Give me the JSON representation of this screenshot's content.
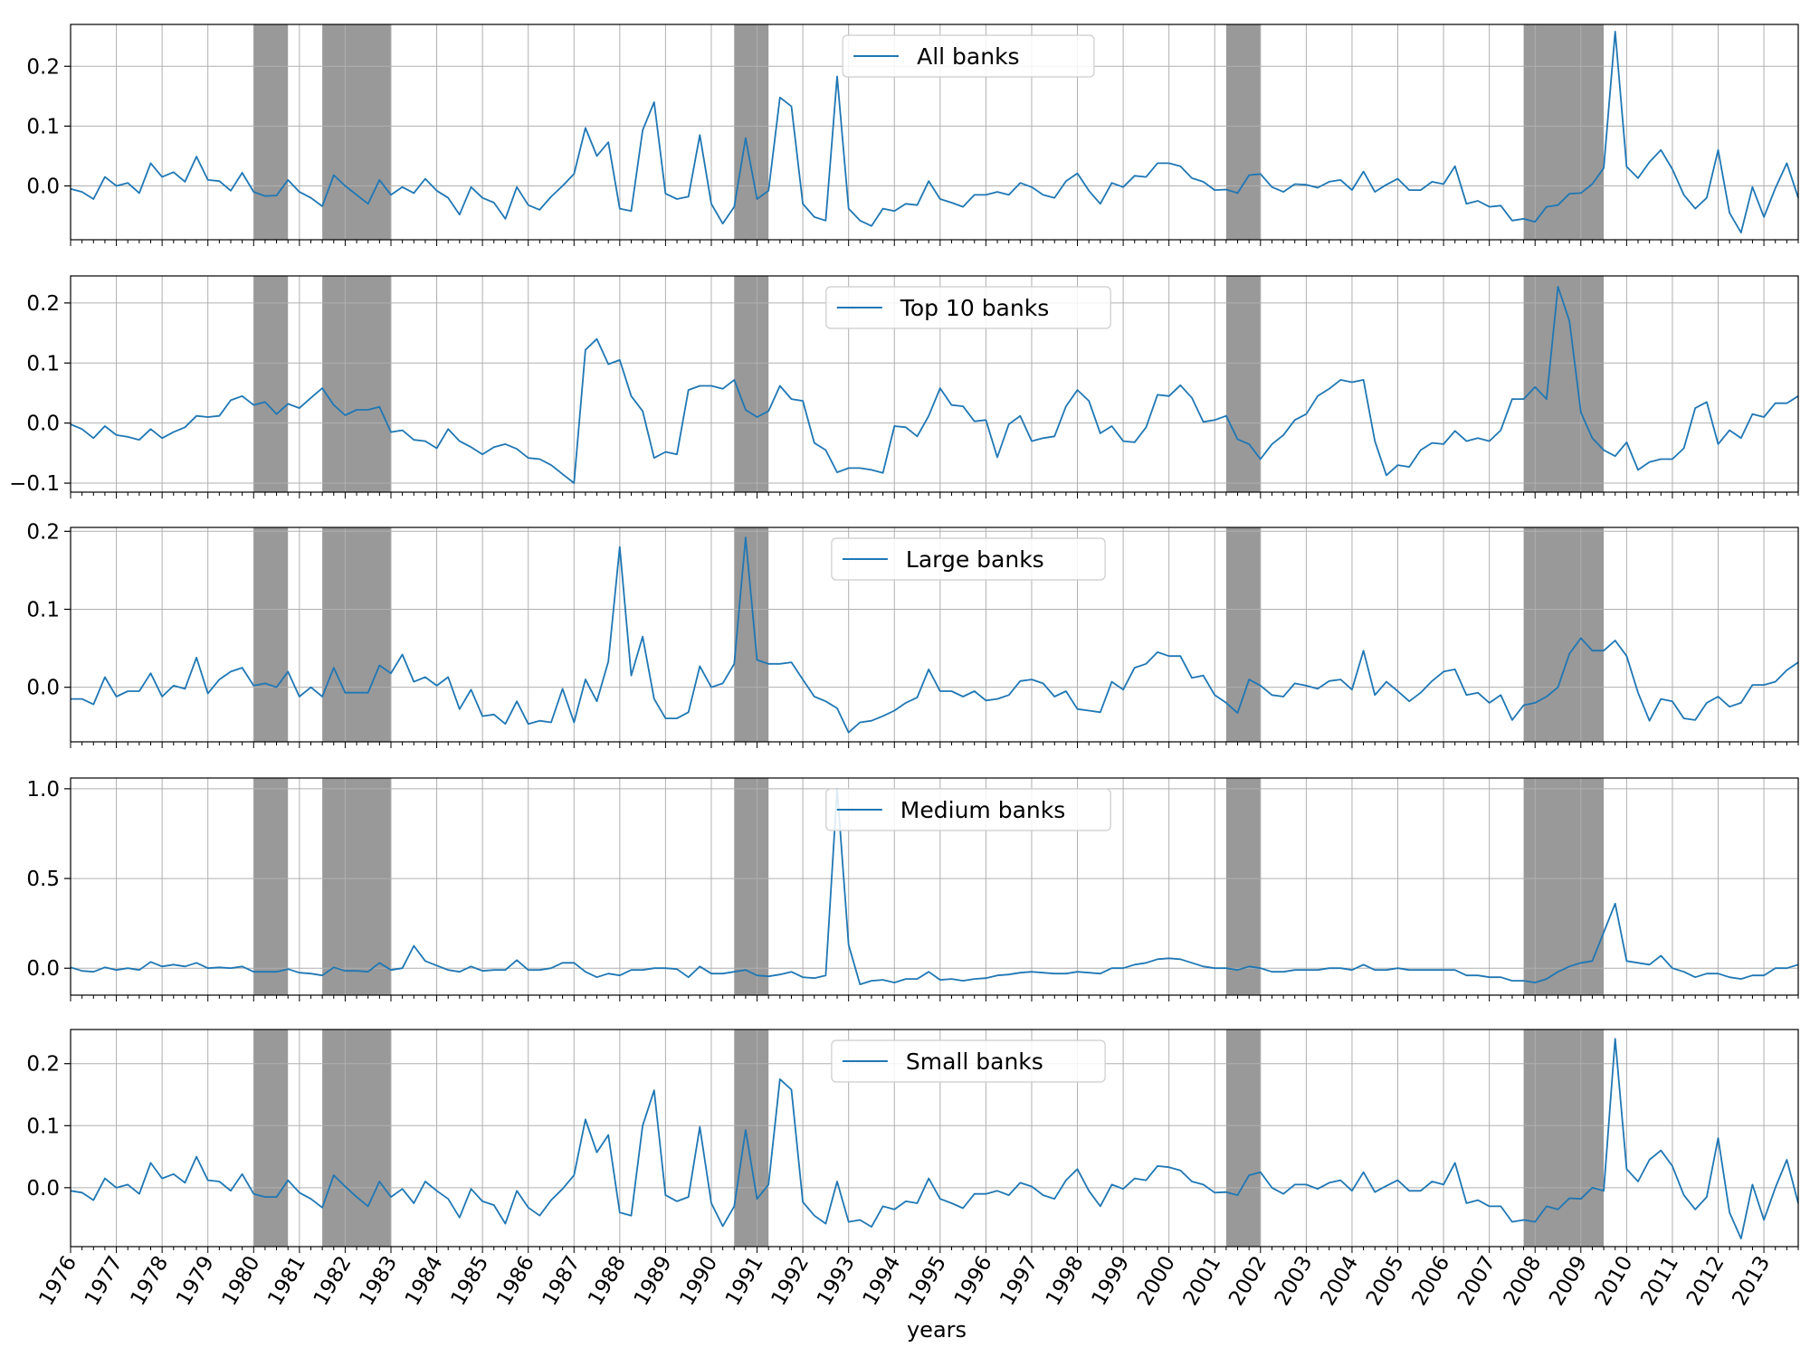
{
  "chart_data": {
    "type": "line",
    "xlabel": "years",
    "x_ticks": [
      "1976",
      "1977",
      "1978",
      "1979",
      "1980",
      "1981",
      "1982",
      "1983",
      "1984",
      "1985",
      "1986",
      "1987",
      "1988",
      "1989",
      "1990",
      "1991",
      "1992",
      "1993",
      "1994",
      "1995",
      "1996",
      "1997",
      "1998",
      "1999",
      "2000",
      "2001",
      "2002",
      "2003",
      "2004",
      "2005",
      "2006",
      "2007",
      "2008",
      "2009",
      "2010",
      "2011",
      "2012",
      "2013"
    ],
    "xlim": [
      "1976Q1",
      "2013Q4"
    ],
    "grid": true,
    "legend_placement": "upper center",
    "line_color": "#1f77b4",
    "recession_shading_color": "#999999",
    "recession_periods": [
      [
        "1980Q1",
        "1980Q3"
      ],
      [
        "1981Q3",
        "1982Q4"
      ],
      [
        "1990Q3",
        "1991Q1"
      ],
      [
        "2001Q2",
        "2001Q4"
      ],
      [
        "2007Q4",
        "2009Q2"
      ]
    ],
    "panels": [
      {
        "series_name": "All banks",
        "ylim": [
          -0.09,
          0.27
        ],
        "y_ticks": [
          0.0,
          0.1,
          0.2
        ],
        "y_tick_labels": [
          "0.0",
          "0.1",
          "0.2"
        ],
        "values": [
          -0.005,
          -0.01,
          -0.022,
          0.015,
          0.0,
          0.005,
          -0.012,
          0.038,
          0.015,
          0.023,
          0.007,
          0.049,
          0.01,
          0.008,
          -0.008,
          0.022,
          -0.01,
          -0.017,
          -0.016,
          0.01,
          -0.01,
          -0.02,
          -0.034,
          0.018,
          0.0,
          -0.015,
          -0.03,
          0.01,
          -0.015,
          -0.002,
          -0.012,
          0.012,
          -0.008,
          -0.02,
          -0.048,
          -0.002,
          -0.02,
          -0.028,
          -0.055,
          -0.002,
          -0.032,
          -0.04,
          -0.018,
          0.0,
          0.02,
          0.097,
          0.05,
          0.073,
          -0.038,
          -0.042,
          0.093,
          0.14,
          -0.013,
          -0.022,
          -0.018,
          0.085,
          -0.03,
          -0.063,
          -0.035,
          0.08,
          -0.022,
          -0.008,
          0.148,
          0.133,
          -0.03,
          -0.052,
          -0.058,
          0.183,
          -0.038,
          -0.058,
          -0.067,
          -0.038,
          -0.042,
          -0.03,
          -0.032,
          0.008,
          -0.022,
          -0.028,
          -0.035,
          -0.015,
          -0.015,
          -0.01,
          -0.015,
          0.005,
          -0.002,
          -0.015,
          -0.02,
          0.008,
          0.021,
          -0.008,
          -0.03,
          0.005,
          -0.002,
          0.017,
          0.015,
          0.038,
          0.038,
          0.033,
          0.013,
          0.007,
          -0.007,
          -0.006,
          -0.012,
          0.018,
          0.02,
          -0.002,
          -0.01,
          0.003,
          0.002,
          -0.003,
          0.007,
          0.01,
          -0.007,
          0.024,
          -0.01,
          0.002,
          0.012,
          -0.007,
          -0.007,
          0.007,
          0.003,
          0.033,
          -0.03,
          -0.025,
          -0.035,
          -0.033,
          -0.058,
          -0.055,
          -0.06,
          -0.035,
          -0.032,
          -0.013,
          -0.012,
          0.003,
          0.03,
          0.258,
          0.032,
          0.013,
          0.04,
          0.06,
          0.028,
          -0.015,
          -0.038,
          -0.02,
          0.06,
          -0.045,
          -0.078,
          -0.002,
          -0.052,
          -0.004,
          0.038,
          -0.02
        ]
      },
      {
        "series_name": "Top 10 banks",
        "ylim": [
          -0.115,
          0.245
        ],
        "y_ticks": [
          -0.1,
          0.0,
          0.1,
          0.2
        ],
        "y_tick_labels": [
          "−0.1",
          "0.0",
          "0.1",
          "0.2"
        ],
        "values": [
          -0.002,
          -0.01,
          -0.025,
          -0.005,
          -0.02,
          -0.023,
          -0.028,
          -0.01,
          -0.025,
          -0.015,
          -0.007,
          0.012,
          0.01,
          0.012,
          0.038,
          0.045,
          0.03,
          0.035,
          0.015,
          0.032,
          0.025,
          0.042,
          0.058,
          0.03,
          0.013,
          0.022,
          0.022,
          0.027,
          -0.015,
          -0.012,
          -0.028,
          -0.03,
          -0.042,
          -0.01,
          -0.03,
          -0.04,
          -0.052,
          -0.04,
          -0.035,
          -0.043,
          -0.058,
          -0.06,
          -0.07,
          -0.085,
          -0.1,
          0.122,
          0.14,
          0.098,
          0.105,
          0.045,
          0.02,
          -0.058,
          -0.048,
          -0.052,
          0.055,
          0.062,
          0.062,
          0.057,
          0.072,
          0.022,
          0.01,
          0.02,
          0.062,
          0.04,
          0.037,
          -0.033,
          -0.045,
          -0.082,
          -0.075,
          -0.075,
          -0.078,
          -0.083,
          -0.005,
          -0.007,
          -0.022,
          0.012,
          0.058,
          0.03,
          0.028,
          0.003,
          0.005,
          -0.057,
          -0.002,
          0.012,
          -0.03,
          -0.025,
          -0.022,
          0.028,
          0.055,
          0.037,
          -0.017,
          -0.005,
          -0.03,
          -0.032,
          -0.007,
          0.047,
          0.045,
          0.063,
          0.042,
          0.002,
          0.005,
          0.012,
          -0.027,
          -0.035,
          -0.06,
          -0.035,
          -0.02,
          0.005,
          0.015,
          0.045,
          0.057,
          0.072,
          0.068,
          0.072,
          -0.03,
          -0.087,
          -0.07,
          -0.073,
          -0.045,
          -0.033,
          -0.035,
          -0.013,
          -0.03,
          -0.025,
          -0.03,
          -0.012,
          0.04,
          0.04,
          0.06,
          0.04,
          0.227,
          0.17,
          0.018,
          -0.025,
          -0.045,
          -0.055,
          -0.032,
          -0.078,
          -0.065,
          -0.06,
          -0.06,
          -0.042,
          0.025,
          0.035,
          -0.035,
          -0.012,
          -0.025,
          0.015,
          0.01,
          0.033,
          0.033,
          0.045
        ]
      },
      {
        "series_name": "Large banks",
        "ylim": [
          -0.07,
          0.205
        ],
        "y_ticks": [
          0.0,
          0.1,
          0.2
        ],
        "y_tick_labels": [
          "0.0",
          "0.1",
          "0.2"
        ],
        "values": [
          -0.015,
          -0.015,
          -0.022,
          0.013,
          -0.012,
          -0.005,
          -0.005,
          0.018,
          -0.012,
          0.002,
          -0.002,
          0.038,
          -0.008,
          0.01,
          0.02,
          0.025,
          0.002,
          0.005,
          0.0,
          0.02,
          -0.012,
          0.0,
          -0.012,
          0.025,
          -0.007,
          -0.007,
          -0.007,
          0.028,
          0.018,
          0.042,
          0.007,
          0.013,
          0.002,
          0.013,
          -0.028,
          -0.003,
          -0.037,
          -0.035,
          -0.047,
          -0.018,
          -0.047,
          -0.043,
          -0.045,
          -0.002,
          -0.045,
          0.01,
          -0.018,
          0.033,
          0.18,
          0.015,
          0.065,
          -0.015,
          -0.04,
          -0.04,
          -0.032,
          0.027,
          0.0,
          0.005,
          0.03,
          0.192,
          0.035,
          0.03,
          0.03,
          0.032,
          0.01,
          -0.012,
          -0.018,
          -0.027,
          -0.058,
          -0.045,
          -0.043,
          -0.037,
          -0.03,
          -0.02,
          -0.013,
          0.023,
          -0.005,
          -0.005,
          -0.012,
          -0.005,
          -0.017,
          -0.015,
          -0.01,
          0.008,
          0.01,
          0.005,
          -0.012,
          -0.005,
          -0.028,
          -0.03,
          -0.032,
          0.007,
          -0.003,
          0.025,
          0.03,
          0.045,
          0.04,
          0.04,
          0.012,
          0.015,
          -0.01,
          -0.02,
          -0.033,
          0.01,
          0.002,
          -0.01,
          -0.012,
          0.005,
          0.002,
          -0.002,
          0.008,
          0.01,
          -0.003,
          0.047,
          -0.01,
          0.007,
          -0.005,
          -0.018,
          -0.007,
          0.008,
          0.02,
          0.023,
          -0.01,
          -0.007,
          -0.02,
          -0.01,
          -0.042,
          -0.023,
          -0.02,
          -0.012,
          0.0,
          0.043,
          0.063,
          0.047,
          0.047,
          0.06,
          0.04,
          -0.007,
          -0.043,
          -0.015,
          -0.018,
          -0.04,
          -0.042,
          -0.02,
          -0.012,
          -0.025,
          -0.02,
          0.003,
          0.003,
          0.007,
          0.022,
          0.032
        ]
      },
      {
        "series_name": "Medium banks",
        "ylim": [
          -0.15,
          1.06
        ],
        "y_ticks": [
          0.0,
          0.5,
          1.0
        ],
        "y_tick_labels": [
          "0.0",
          "0.5",
          "1.0"
        ],
        "values": [
          0.005,
          -0.015,
          -0.02,
          0.005,
          -0.01,
          0.0,
          -0.01,
          0.035,
          0.01,
          0.02,
          0.01,
          0.03,
          0.0,
          0.005,
          0.0,
          0.01,
          -0.02,
          -0.02,
          -0.02,
          -0.005,
          -0.025,
          -0.03,
          -0.04,
          0.005,
          -0.015,
          -0.015,
          -0.02,
          0.03,
          -0.01,
          0.0,
          0.125,
          0.04,
          0.015,
          -0.01,
          -0.02,
          0.01,
          -0.015,
          -0.01,
          -0.01,
          0.045,
          -0.01,
          -0.01,
          0.0,
          0.03,
          0.03,
          -0.02,
          -0.05,
          -0.03,
          -0.04,
          -0.01,
          -0.01,
          0.0,
          0.0,
          -0.005,
          -0.05,
          0.01,
          -0.03,
          -0.03,
          -0.02,
          -0.01,
          -0.04,
          -0.045,
          -0.035,
          -0.02,
          -0.05,
          -0.055,
          -0.04,
          1.0,
          0.13,
          -0.09,
          -0.07,
          -0.065,
          -0.08,
          -0.06,
          -0.06,
          -0.02,
          -0.065,
          -0.06,
          -0.07,
          -0.06,
          -0.055,
          -0.04,
          -0.035,
          -0.025,
          -0.02,
          -0.025,
          -0.03,
          -0.03,
          -0.02,
          -0.025,
          -0.03,
          0.0,
          0.0,
          0.02,
          0.03,
          0.05,
          0.055,
          0.05,
          0.03,
          0.01,
          0.0,
          0.0,
          -0.01,
          0.01,
          0.0,
          -0.02,
          -0.02,
          -0.01,
          -0.01,
          -0.01,
          0.0,
          0.0,
          -0.01,
          0.02,
          -0.01,
          -0.01,
          0.0,
          -0.01,
          -0.01,
          -0.01,
          -0.01,
          -0.01,
          -0.04,
          -0.04,
          -0.05,
          -0.05,
          -0.07,
          -0.07,
          -0.08,
          -0.06,
          -0.02,
          0.01,
          0.03,
          0.04,
          0.2,
          0.36,
          0.04,
          0.03,
          0.02,
          0.07,
          0.0,
          -0.02,
          -0.05,
          -0.03,
          -0.03,
          -0.05,
          -0.06,
          -0.04,
          -0.04,
          0.0,
          0.0,
          0.02
        ]
      },
      {
        "series_name": "Small banks",
        "ylim": [
          -0.095,
          0.255
        ],
        "y_ticks": [
          0.0,
          0.1,
          0.2
        ],
        "y_tick_labels": [
          "0.0",
          "0.1",
          "0.2"
        ],
        "values": [
          -0.005,
          -0.008,
          -0.02,
          0.015,
          0.0,
          0.005,
          -0.01,
          0.04,
          0.015,
          0.022,
          0.008,
          0.05,
          0.012,
          0.01,
          -0.005,
          0.022,
          -0.01,
          -0.015,
          -0.015,
          0.012,
          -0.008,
          -0.018,
          -0.032,
          0.02,
          0.002,
          -0.015,
          -0.03,
          0.01,
          -0.015,
          -0.002,
          -0.025,
          0.01,
          -0.005,
          -0.018,
          -0.048,
          -0.002,
          -0.022,
          -0.028,
          -0.058,
          -0.005,
          -0.032,
          -0.045,
          -0.02,
          -0.002,
          0.02,
          0.11,
          0.057,
          0.085,
          -0.04,
          -0.045,
          0.1,
          0.157,
          -0.012,
          -0.022,
          -0.015,
          0.098,
          -0.025,
          -0.062,
          -0.03,
          0.093,
          -0.018,
          0.005,
          0.175,
          0.158,
          -0.023,
          -0.045,
          -0.058,
          0.01,
          -0.055,
          -0.052,
          -0.063,
          -0.03,
          -0.035,
          -0.022,
          -0.025,
          0.015,
          -0.018,
          -0.025,
          -0.033,
          -0.01,
          -0.01,
          -0.005,
          -0.012,
          0.008,
          0.002,
          -0.012,
          -0.018,
          0.012,
          0.03,
          -0.005,
          -0.03,
          0.005,
          -0.002,
          0.015,
          0.012,
          0.035,
          0.033,
          0.028,
          0.01,
          0.005,
          -0.008,
          -0.007,
          -0.012,
          0.02,
          0.025,
          0.0,
          -0.01,
          0.005,
          0.005,
          -0.002,
          0.008,
          0.012,
          -0.005,
          0.025,
          -0.007,
          0.003,
          0.012,
          -0.005,
          -0.005,
          0.01,
          0.005,
          0.04,
          -0.025,
          -0.02,
          -0.03,
          -0.03,
          -0.055,
          -0.052,
          -0.055,
          -0.03,
          -0.035,
          -0.017,
          -0.018,
          0.0,
          -0.005,
          0.24,
          0.03,
          0.01,
          0.045,
          0.06,
          0.035,
          -0.012,
          -0.035,
          -0.015,
          0.08,
          -0.04,
          -0.082,
          0.005,
          -0.052,
          0.0,
          0.045,
          -0.025
        ]
      }
    ]
  }
}
